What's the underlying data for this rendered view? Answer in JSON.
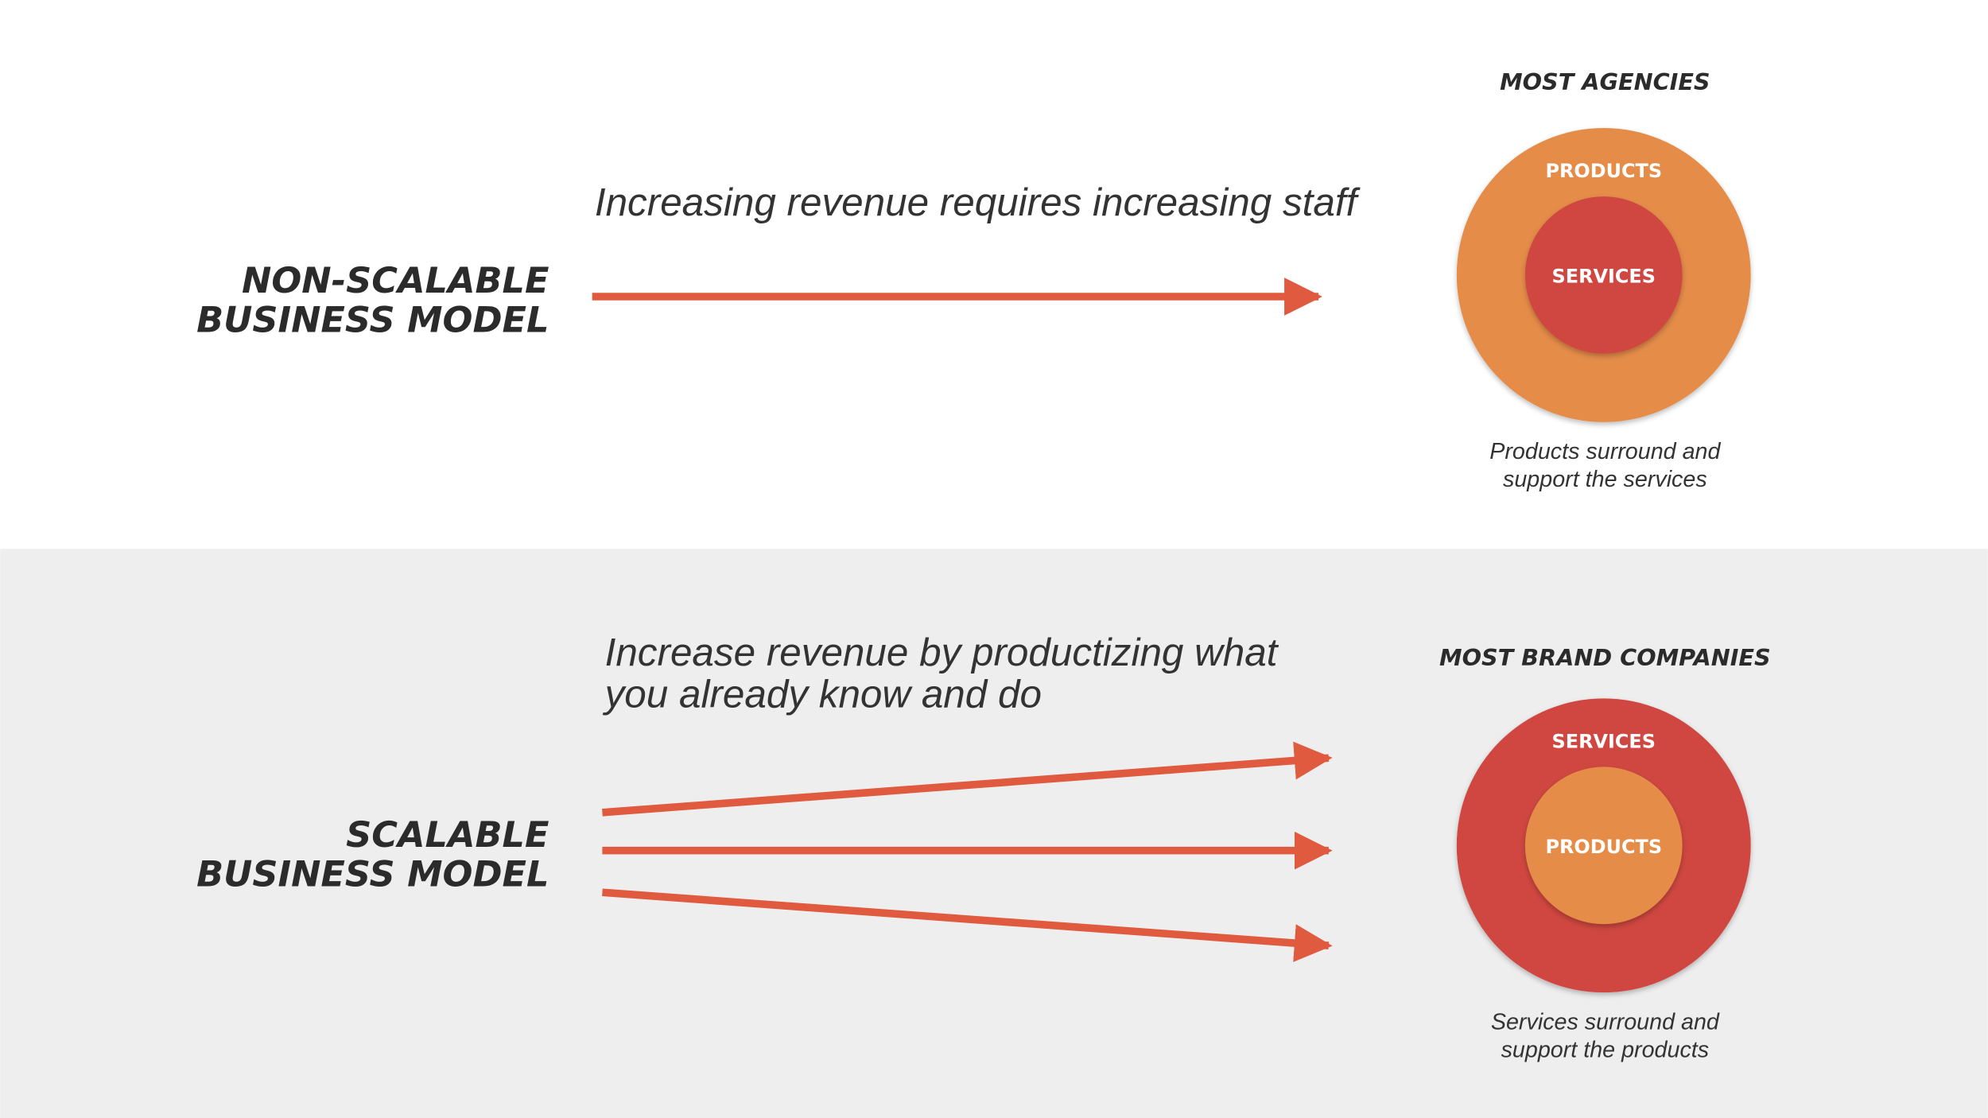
{
  "sections": [
    {
      "label_lines": [
        "NON-SCALABLE",
        "BUSINESS MODEL"
      ],
      "caption_lines": [
        "Increasing revenue requires increasing staff"
      ],
      "diagram": {
        "title": "MOST AGENCIES",
        "outer": "PRODUCTS",
        "inner": "SERVICES",
        "note_lines": [
          "Products surround and",
          "support the services"
        ]
      }
    },
    {
      "label_lines": [
        "SCALABLE",
        "BUSINESS MODEL"
      ],
      "caption_lines": [
        "Increase revenue by productizing what",
        "you already know and do"
      ],
      "diagram": {
        "title": "MOST BRAND COMPANIES",
        "outer": "SERVICES",
        "inner": "PRODUCTS",
        "note_lines": [
          "Services surround and",
          "support the products"
        ]
      }
    }
  ]
}
